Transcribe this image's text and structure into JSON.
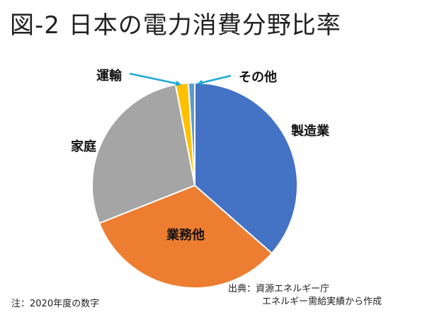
{
  "title": "図-2 日本の電力消費分野比率",
  "chart_data": {
    "type": "pie",
    "start_angle_deg": 0,
    "direction": "clockwise",
    "slices": [
      {
        "label": "製造業",
        "value": 36.5,
        "color": "#4472C4"
      },
      {
        "label": "業務他",
        "value": 32.5,
        "color": "#ED7D31"
      },
      {
        "label": "家庭",
        "value": 28.0,
        "color": "#A5A5A5"
      },
      {
        "label": "運輸",
        "value": 2.0,
        "color": "#FFC000"
      },
      {
        "label": "その他",
        "value": 1.0,
        "color": "#5B9BD5"
      }
    ]
  },
  "note": "注：2020年度の数字",
  "source": {
    "line1": "出典：資源エネルギー庁",
    "line2": "エネルギー需給実績から作成"
  }
}
